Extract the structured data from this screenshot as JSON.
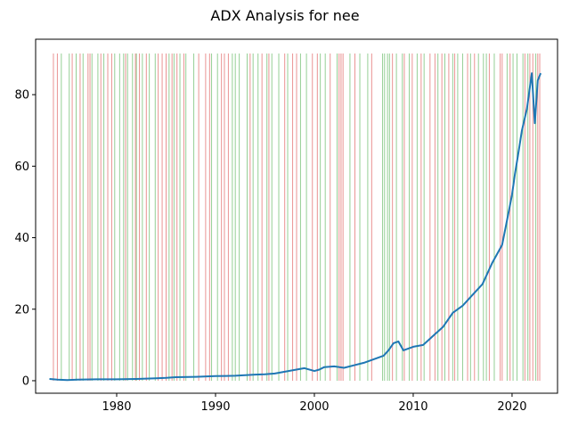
{
  "chart_data": {
    "type": "line",
    "title": "ADX Analysis for nee",
    "xlabel": "",
    "ylabel": "",
    "xlim": [
      1971.8,
      2024.6
    ],
    "ylim": [
      -3.5,
      95.5
    ],
    "x_ticks": [
      1980,
      1990,
      2000,
      2010,
      2020
    ],
    "x_tick_labels": [
      "1980",
      "1990",
      "2000",
      "2010",
      "2020"
    ],
    "y_ticks": [
      0,
      20,
      40,
      60,
      80
    ],
    "y_tick_labels": [
      "0",
      "20",
      "40",
      "60",
      "80"
    ],
    "grid": false,
    "legend": "none",
    "colors": {
      "price": "#1f77b4",
      "bull_signal": "#2ca02c",
      "bear_signal": "#d62728",
      "axes": "#000000"
    },
    "signal_line_top": 91.5,
    "series": [
      {
        "role": "price",
        "x": [
          1973.2,
          1974.0,
          1975.0,
          1976.0,
          1978.0,
          1980.0,
          1982.0,
          1984.0,
          1985.0,
          1986.0,
          1988.0,
          1990.0,
          1992.0,
          1994.0,
          1995.0,
          1996.0,
          1997.0,
          1998.0,
          1999.0,
          2000.0,
          2000.5,
          2001.0,
          2002.0,
          2003.0,
          2004.0,
          2005.0,
          2006.0,
          2007.0,
          2007.5,
          2008.0,
          2008.5,
          2009.0,
          2010.0,
          2011.0,
          2012.0,
          2013.0,
          2014.0,
          2015.0,
          2016.0,
          2017.0,
          2018.0,
          2019.0,
          2019.5,
          2020.0,
          2020.3,
          2020.6,
          2021.0,
          2021.5,
          2022.0,
          2022.3,
          2022.6,
          2022.9
        ],
        "values": [
          0.5,
          0.3,
          0.2,
          0.3,
          0.4,
          0.4,
          0.5,
          0.7,
          0.8,
          1.0,
          1.1,
          1.3,
          1.4,
          1.7,
          1.8,
          2.0,
          2.5,
          3.0,
          3.5,
          2.7,
          3.1,
          3.8,
          4.0,
          3.6,
          4.3,
          5.0,
          6.0,
          7.0,
          8.5,
          10.5,
          11.0,
          8.5,
          9.5,
          10.0,
          12.5,
          15.0,
          19.0,
          21.0,
          24.0,
          27.0,
          33.0,
          38.0,
          45.0,
          52.0,
          58.0,
          63.0,
          70.0,
          76.0,
          86.0,
          72.0,
          84.0,
          86.0
        ]
      }
    ],
    "bull_signals": [
      1974.4,
      1975.2,
      1975.9,
      1976.6,
      1977.5,
      1978.1,
      1978.7,
      1979.8,
      1980.3,
      1980.7,
      1981.1,
      1981.6,
      1982.0,
      1982.6,
      1983.3,
      1983.9,
      1985.3,
      1985.8,
      1986.4,
      1987.0,
      1987.8,
      1989.6,
      1990.2,
      1991.7,
      1992.0,
      1992.4,
      1993.2,
      1993.8,
      1994.3,
      1995.2,
      1995.7,
      1996.4,
      1997.3,
      1998.6,
      1999.2,
      2000.6,
      2001.1,
      2002.3,
      2003.6,
      2004.6,
      2005.4,
      2006.9,
      2007.1,
      2007.4,
      2007.6,
      2008.3,
      2008.9,
      2009.6,
      2010.4,
      2011.1,
      2012.5,
      2013.2,
      2014.0,
      2014.5,
      2015.0,
      2015.8,
      2016.6,
      2017.1,
      2017.4,
      2018.2,
      2019.5,
      2020.1,
      2020.5,
      2021.1,
      2021.6,
      2022.4
    ],
    "bear_signals": [
      1973.6,
      1974.0,
      1975.5,
      1976.3,
      1977.1,
      1977.3,
      1978.4,
      1979.1,
      1979.5,
      1980.9,
      1981.9,
      1982.3,
      1983.0,
      1984.2,
      1984.6,
      1985.0,
      1985.6,
      1986.1,
      1986.8,
      1988.3,
      1989.0,
      1989.4,
      1990.6,
      1990.9,
      1991.3,
      1993.5,
      1994.7,
      1995.4,
      1997.0,
      1997.8,
      1998.2,
      1999.8,
      2000.3,
      2001.6,
      2002.5,
      2002.7,
      2002.9,
      2004.1,
      2005.8,
      2007.9,
      2009.1,
      2009.9,
      2010.8,
      2011.7,
      2012.2,
      2012.9,
      2013.6,
      2014.2,
      2015.5,
      2016.2,
      2017.7,
      2018.8,
      2019.0,
      2019.8,
      2021.3,
      2021.8,
      2022.1,
      2022.6,
      2022.8
    ]
  }
}
